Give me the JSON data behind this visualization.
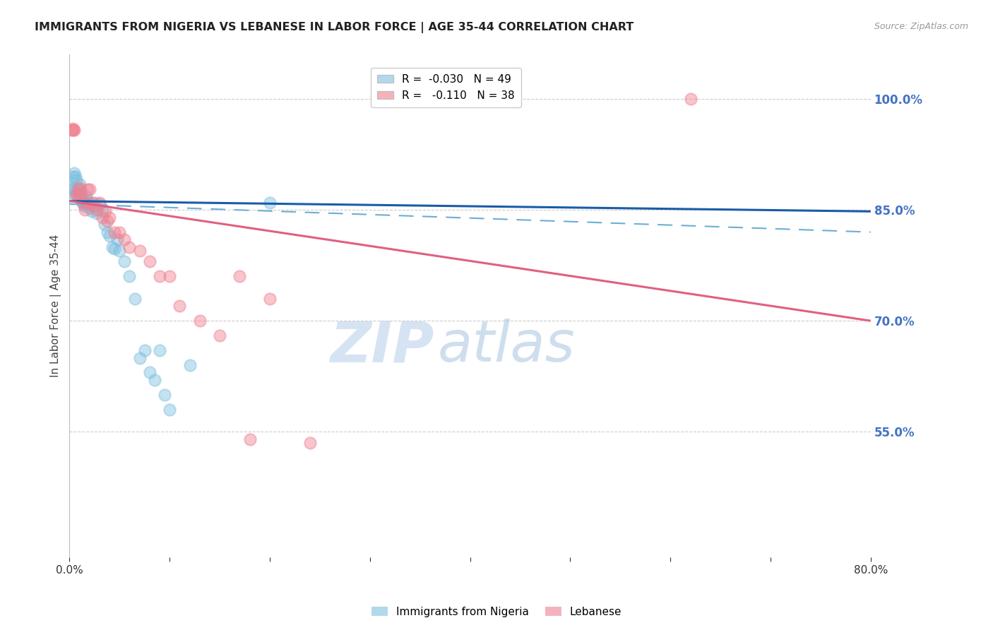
{
  "title": "IMMIGRANTS FROM NIGERIA VS LEBANESE IN LABOR FORCE | AGE 35-44 CORRELATION CHART",
  "source": "Source: ZipAtlas.com",
  "ylabel": "In Labor Force | Age 35-44",
  "xlim": [
    0.0,
    0.8
  ],
  "ylim": [
    0.38,
    1.06
  ],
  "yticks": [
    0.55,
    0.7,
    0.85,
    1.0
  ],
  "ytick_labels": [
    "55.0%",
    "70.0%",
    "85.0%",
    "100.0%"
  ],
  "xticks": [
    0.0,
    0.1,
    0.2,
    0.3,
    0.4,
    0.5,
    0.6,
    0.7,
    0.8
  ],
  "xtick_labels": [
    "0.0%",
    "",
    "",
    "",
    "",
    "",
    "",
    "",
    "80.0%"
  ],
  "nigeria_color": "#7fbfdf",
  "lebanese_color": "#f08090",
  "watermark_zip": "ZIP",
  "watermark_atlas": "atlas",
  "nigeria_scatter_x": [
    0.001,
    0.002,
    0.003,
    0.004,
    0.005,
    0.005,
    0.006,
    0.007,
    0.007,
    0.008,
    0.009,
    0.01,
    0.01,
    0.011,
    0.012,
    0.013,
    0.014,
    0.015,
    0.016,
    0.017,
    0.018,
    0.019,
    0.02,
    0.021,
    0.022,
    0.024,
    0.025,
    0.027,
    0.03,
    0.033,
    0.035,
    0.038,
    0.04,
    0.043,
    0.045,
    0.048,
    0.05,
    0.055,
    0.06,
    0.065,
    0.07,
    0.075,
    0.08,
    0.085,
    0.09,
    0.095,
    0.1,
    0.12,
    0.2
  ],
  "nigeria_scatter_y": [
    0.87,
    0.878,
    0.88,
    0.895,
    0.9,
    0.878,
    0.895,
    0.87,
    0.89,
    0.878,
    0.87,
    0.872,
    0.885,
    0.878,
    0.87,
    0.862,
    0.858,
    0.855,
    0.862,
    0.868,
    0.858,
    0.862,
    0.858,
    0.852,
    0.848,
    0.855,
    0.86,
    0.845,
    0.858,
    0.848,
    0.83,
    0.82,
    0.815,
    0.8,
    0.798,
    0.81,
    0.795,
    0.78,
    0.76,
    0.73,
    0.65,
    0.66,
    0.63,
    0.62,
    0.66,
    0.6,
    0.58,
    0.64,
    0.86
  ],
  "lebanese_scatter_x": [
    0.002,
    0.003,
    0.004,
    0.005,
    0.007,
    0.008,
    0.009,
    0.01,
    0.011,
    0.013,
    0.015,
    0.017,
    0.018,
    0.02,
    0.022,
    0.025,
    0.027,
    0.03,
    0.033,
    0.036,
    0.038,
    0.04,
    0.045,
    0.05,
    0.055,
    0.06,
    0.07,
    0.08,
    0.09,
    0.1,
    0.11,
    0.13,
    0.15,
    0.17,
    0.18,
    0.2,
    0.24,
    0.62
  ],
  "lebanese_scatter_y": [
    0.958,
    0.96,
    0.958,
    0.958,
    0.87,
    0.878,
    0.87,
    0.88,
    0.87,
    0.86,
    0.85,
    0.86,
    0.878,
    0.878,
    0.86,
    0.855,
    0.85,
    0.86,
    0.84,
    0.848,
    0.835,
    0.84,
    0.82,
    0.82,
    0.81,
    0.8,
    0.795,
    0.78,
    0.76,
    0.76,
    0.72,
    0.7,
    0.68,
    0.76,
    0.54,
    0.73,
    0.535,
    1.0
  ],
  "nigeria_solid_line": [
    [
      0.0,
      0.8
    ],
    [
      0.862,
      0.848
    ]
  ],
  "nigeria_dashed_line": [
    [
      0.0,
      0.8
    ],
    [
      0.858,
      0.82
    ]
  ],
  "lebanese_solid_line": [
    [
      0.0,
      0.8
    ],
    [
      0.862,
      0.7
    ]
  ],
  "background_color": "#ffffff",
  "grid_color": "#cccccc",
  "title_color": "#222222",
  "axis_label_color": "#444444",
  "right_axis_color": "#4472c4"
}
